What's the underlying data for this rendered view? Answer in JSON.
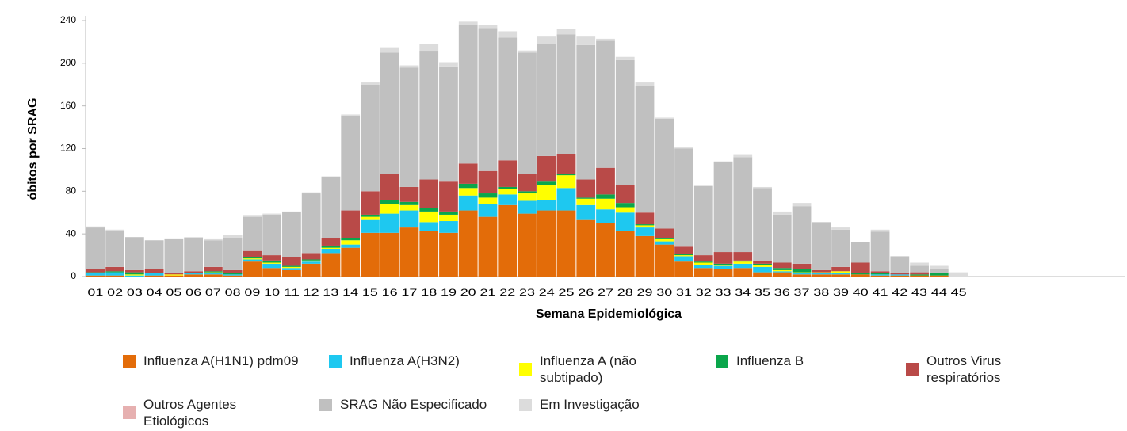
{
  "chart_data": {
    "type": "stacked-bar",
    "y_label": "óbitos por SRAG",
    "x_label": "Semana Epidemiológica",
    "categories": [
      "01",
      "02",
      "03",
      "04",
      "05",
      "06",
      "07",
      "08",
      "09",
      "10",
      "11",
      "12",
      "13",
      "14",
      "15",
      "16",
      "17",
      "18",
      "19",
      "20",
      "21",
      "22",
      "23",
      "24",
      "25",
      "26",
      "27",
      "28",
      "29",
      "30",
      "31",
      "32",
      "33",
      "34",
      "35",
      "36",
      "37",
      "38",
      "39",
      "40",
      "41",
      "42",
      "43",
      "44",
      "45",
      null,
      null,
      null,
      null,
      null,
      null,
      null,
      null
    ],
    "ylim": [
      0,
      240
    ],
    "yticks": [
      0,
      40,
      80,
      120,
      160,
      200,
      240
    ],
    "grid": false,
    "series": [
      {
        "name": "Influenza A(H1N1) pdm09",
        "color": "#e36c09",
        "values": [
          1,
          1,
          0,
          1,
          1,
          2,
          2,
          1,
          14,
          8,
          6,
          12,
          22,
          27,
          41,
          41,
          46,
          43,
          41,
          62,
          56,
          67,
          59,
          62,
          62,
          53,
          50,
          43,
          38,
          30,
          14,
          8,
          7,
          8,
          4,
          4,
          2,
          2,
          2,
          2,
          1,
          1,
          1,
          1,
          0,
          null,
          null,
          null,
          null,
          null,
          null,
          null,
          null
        ]
      },
      {
        "name": "Influenza A(H3N2)",
        "color": "#1ec8f0",
        "values": [
          2,
          3,
          1,
          2,
          0,
          1,
          1,
          1,
          2,
          4,
          2,
          2,
          4,
          3,
          12,
          18,
          16,
          8,
          11,
          14,
          12,
          10,
          12,
          10,
          21,
          14,
          13,
          17,
          8,
          3,
          5,
          3,
          3,
          4,
          5,
          1,
          1,
          1,
          1,
          0,
          1,
          1,
          0,
          0,
          0,
          null,
          null,
          null,
          null,
          null,
          null,
          null,
          null
        ]
      },
      {
        "name": "Influenza A (não subtipado)",
        "color": "#ffff00",
        "values": [
          0,
          0,
          1,
          0,
          1,
          0,
          1,
          0,
          1,
          1,
          1,
          1,
          1,
          4,
          3,
          9,
          5,
          10,
          6,
          7,
          6,
          5,
          7,
          14,
          12,
          6,
          10,
          5,
          2,
          2,
          1,
          2,
          1,
          2,
          2,
          1,
          1,
          1,
          2,
          0,
          0,
          0,
          0,
          0,
          0,
          null,
          null,
          null,
          null,
          null,
          null,
          null,
          null
        ]
      },
      {
        "name": "Influenza B",
        "color": "#0aa64b",
        "values": [
          1,
          1,
          2,
          0,
          0,
          0,
          1,
          1,
          1,
          2,
          1,
          1,
          2,
          2,
          2,
          4,
          3,
          3,
          3,
          4,
          4,
          2,
          2,
          3,
          1,
          1,
          4,
          4,
          1,
          1,
          1,
          1,
          1,
          1,
          1,
          2,
          3,
          0,
          0,
          1,
          1,
          0,
          1,
          2,
          0,
          null,
          null,
          null,
          null,
          null,
          null,
          null,
          null
        ]
      },
      {
        "name": "Outros Virus respiratórios",
        "color": "#b94a48",
        "values": [
          3,
          4,
          2,
          4,
          1,
          2,
          4,
          3,
          6,
          5,
          8,
          6,
          7,
          26,
          22,
          24,
          14,
          27,
          28,
          19,
          21,
          25,
          16,
          24,
          19,
          17,
          25,
          17,
          11,
          9,
          7,
          6,
          11,
          8,
          3,
          5,
          5,
          2,
          4,
          10,
          2,
          1,
          2,
          0,
          0,
          null,
          null,
          null,
          null,
          null,
          null,
          null,
          null
        ]
      },
      {
        "name": "Outros Agentes Etiológicos",
        "color": "#e6b0b0",
        "values": [
          0,
          0,
          0,
          0,
          0,
          0,
          0,
          0,
          0,
          0,
          0,
          0,
          0,
          0,
          0,
          0,
          0,
          0,
          0,
          0,
          0,
          0,
          0,
          0,
          0,
          0,
          0,
          0,
          0,
          0,
          0,
          0,
          0,
          0,
          0,
          0,
          0,
          0,
          0,
          0,
          0,
          0,
          0,
          0,
          0,
          null,
          null,
          null,
          null,
          null,
          null,
          null,
          null
        ]
      },
      {
        "name": "SRAG Não Especificado",
        "color": "#c0c0c0",
        "values": [
          39,
          34,
          31,
          27,
          32,
          31,
          25,
          30,
          32,
          38,
          43,
          56,
          57,
          89,
          100,
          114,
          112,
          120,
          108,
          130,
          134,
          115,
          114,
          105,
          112,
          126,
          119,
          117,
          119,
          103,
          92,
          65,
          84,
          89,
          68,
          45,
          54,
          45,
          35,
          19,
          37,
          16,
          6,
          4,
          0,
          null,
          null,
          null,
          null,
          null,
          null,
          null,
          null
        ]
      },
      {
        "name": "Em Investigação",
        "color": "#dcdcdc",
        "values": [
          1,
          1,
          0,
          0,
          0,
          1,
          1,
          3,
          1,
          1,
          0,
          1,
          1,
          1,
          2,
          5,
          2,
          7,
          4,
          3,
          3,
          6,
          2,
          7,
          5,
          8,
          2,
          3,
          3,
          1,
          1,
          0,
          1,
          2,
          1,
          3,
          3,
          0,
          2,
          0,
          2,
          0,
          3,
          3,
          4,
          null,
          null,
          null,
          null,
          null,
          null,
          null,
          null
        ]
      }
    ]
  }
}
